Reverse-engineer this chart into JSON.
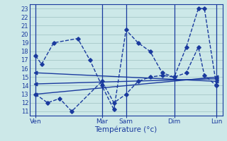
{
  "title": "Température (°c)",
  "background_color": "#cce8e8",
  "grid_color": "#aacccc",
  "line_color": "#1a3a9e",
  "xlim": [
    0,
    32
  ],
  "ylim": [
    10.5,
    23.5
  ],
  "yticks": [
    11,
    12,
    13,
    14,
    15,
    16,
    17,
    18,
    19,
    20,
    21,
    22,
    23
  ],
  "xtick_labels": [
    "Ven",
    "Mar",
    "Sam",
    "Dim",
    "Lun"
  ],
  "xtick_positions": [
    1,
    12,
    16,
    24,
    31
  ],
  "vlines": [
    1,
    12,
    16,
    24,
    31
  ],
  "series1_x": [
    1,
    2,
    4,
    8,
    10,
    12,
    14,
    16,
    18,
    20,
    22,
    24,
    26,
    28,
    29,
    31
  ],
  "series1_y": [
    17.5,
    16.5,
    19.0,
    19.5,
    17.0,
    14.0,
    11.2,
    20.5,
    19.0,
    18.0,
    15.5,
    15.0,
    18.5,
    23.0,
    23.0,
    14.0
  ],
  "series2_x": [
    1,
    3,
    5,
    7,
    12,
    14,
    16,
    18,
    20,
    22,
    24,
    26,
    28,
    29,
    31
  ],
  "series2_y": [
    13.0,
    12.0,
    12.5,
    11.0,
    14.5,
    12.0,
    13.0,
    14.5,
    15.0,
    15.2,
    15.0,
    15.5,
    18.5,
    15.2,
    14.0
  ],
  "series3_x": [
    1,
    31
  ],
  "series3_y": [
    15.5,
    14.5
  ],
  "series4_x": [
    1,
    31
  ],
  "series4_y": [
    14.2,
    14.8
  ],
  "series5_x": [
    1,
    31
  ],
  "series5_y": [
    13.0,
    15.0
  ]
}
